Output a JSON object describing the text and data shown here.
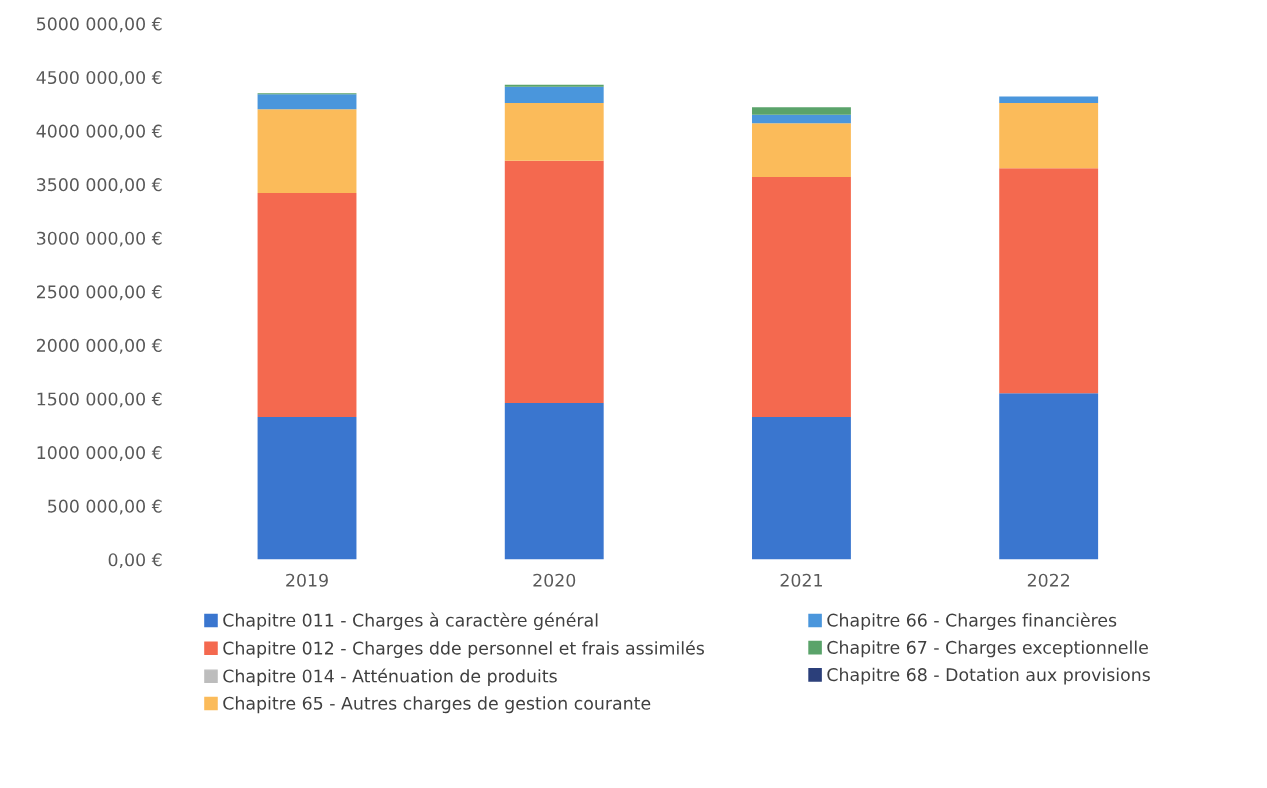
{
  "chart_data": {
    "type": "bar",
    "stacked": true,
    "categories": [
      "2019",
      "2020",
      "2021",
      "2022"
    ],
    "series": [
      {
        "name": "Chapitre 011 - Charges à caractère général",
        "color": "#3a76cf",
        "values": [
          1330000,
          1460000,
          1330000,
          1550000
        ]
      },
      {
        "name": "Chapitre 012 - Charges dde personnel et frais assimilés",
        "color": "#f4694f",
        "values": [
          2090000,
          2260000,
          2240000,
          2100000
        ]
      },
      {
        "name": "Chapitre 014 - Atténuation de produits",
        "color": "#bdbdbd",
        "values": [
          0,
          0,
          0,
          0
        ]
      },
      {
        "name": "Chapitre 65 - Autres charges de gestion courante",
        "color": "#fbbb5a",
        "values": [
          780000,
          540000,
          500000,
          610000
        ]
      },
      {
        "name": "Chapitre 66 - Charges financières",
        "color": "#4a96dc",
        "values": [
          140000,
          150000,
          80000,
          60000
        ]
      },
      {
        "name": "Chapitre 67 - Charges exceptionnelle",
        "color": "#5aa36a",
        "values": [
          10000,
          20000,
          70000,
          0
        ]
      },
      {
        "name": "Chapitre 68 - Dotation aux provisions",
        "color": "#2b3f7a",
        "values": [
          0,
          0,
          0,
          0
        ]
      }
    ],
    "ylim": [
      0,
      5000000
    ],
    "yticks": [
      {
        "value": 0,
        "label": "0,00 €"
      },
      {
        "value": 500000,
        "label": "500 000,00 €"
      },
      {
        "value": 1000000,
        "label": "1000 000,00 €"
      },
      {
        "value": 1500000,
        "label": "1500 000,00 €"
      },
      {
        "value": 2000000,
        "label": "2000 000,00 €"
      },
      {
        "value": 2500000,
        "label": "2500 000,00 €"
      },
      {
        "value": 3000000,
        "label": "3000 000,00 €"
      },
      {
        "value": 3500000,
        "label": "3500 000,00 €"
      },
      {
        "value": 4000000,
        "label": "4000 000,00 €"
      },
      {
        "value": 4500000,
        "label": "4500 000,00 €"
      },
      {
        "value": 5000000,
        "label": "5000 000,00 €"
      }
    ],
    "grid": false,
    "legend": "bottom"
  }
}
